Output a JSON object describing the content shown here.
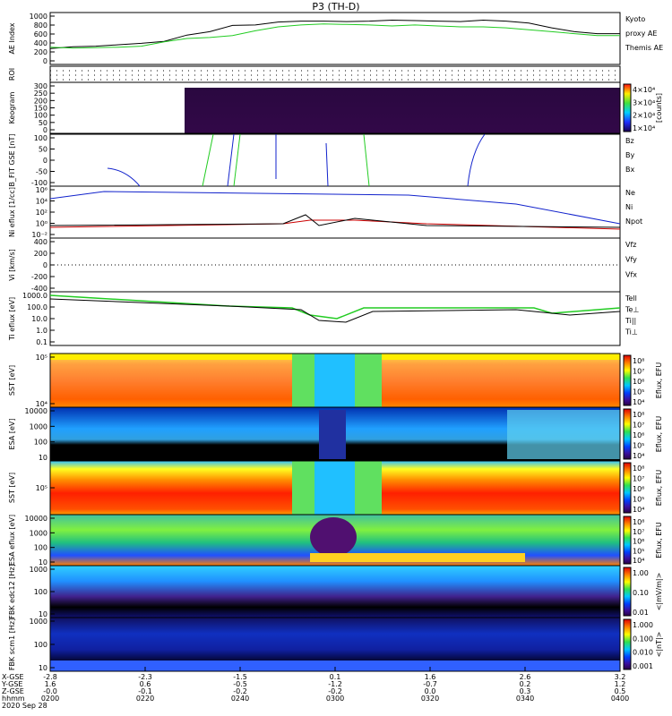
{
  "title": "P3 (TH-D)",
  "chart_data": [
    {
      "type": "line",
      "ylabel": "AE Index",
      "yticks": [
        "1000",
        "800",
        "600",
        "400",
        "200",
        "0"
      ],
      "legend": [
        {
          "text": "Kyoto",
          "color": "#22cc22"
        },
        {
          "text": "proxy AE",
          "color": "#22cc22"
        },
        {
          "text": "Themis AE",
          "color": "#000000"
        }
      ],
      "series": [
        {
          "name": "Themis AE",
          "color": "#000000",
          "x": [
            0,
            0.04,
            0.08,
            0.12,
            0.16,
            0.2,
            0.24,
            0.28,
            0.32,
            0.36,
            0.4,
            0.44,
            0.48,
            0.52,
            0.56,
            0.6,
            0.64,
            0.68,
            0.72,
            0.76,
            0.8,
            0.84,
            0.88,
            0.92,
            0.96,
            1
          ],
          "values": [
            290,
            330,
            340,
            370,
            400,
            440,
            570,
            640,
            770,
            780,
            840,
            860,
            860,
            850,
            860,
            880,
            870,
            860,
            850,
            880,
            860,
            820,
            720,
            640,
            600,
            600
          ]
        },
        {
          "name": "Kyoto proxy AE",
          "color": "#22cc22",
          "x": [
            0,
            0.04,
            0.08,
            0.12,
            0.16,
            0.2,
            0.24,
            0.28,
            0.32,
            0.36,
            0.4,
            0.44,
            0.48,
            0.52,
            0.56,
            0.6,
            0.64,
            0.68,
            0.72,
            0.76,
            0.8,
            0.84,
            0.88,
            0.92,
            0.96,
            1
          ],
          "values": [
            320,
            300,
            310,
            320,
            340,
            430,
            500,
            520,
            560,
            660,
            740,
            780,
            800,
            790,
            780,
            760,
            780,
            760,
            740,
            740,
            720,
            680,
            640,
            600,
            560,
            560
          ]
        }
      ]
    },
    {
      "type": "table",
      "ylabel": "ROI"
    },
    {
      "type": "heatmap",
      "ylabel": "Keogram",
      "yticks": [
        "300",
        "250",
        "200",
        "150",
        "100",
        "50",
        "0"
      ],
      "colorbar_ticks": [
        "4×10⁴",
        "3×10⁴",
        "2×10⁴",
        "1×10⁴"
      ],
      "colorbar_label": "[counts]"
    },
    {
      "type": "line",
      "ylabel": "B_FIT GSE [nT]",
      "yticks": [
        "100",
        "50",
        "0",
        "-50",
        "-100"
      ],
      "legend": [
        {
          "text": "Bz",
          "color": "#cc0000"
        },
        {
          "text": "By",
          "color": "#22cc22"
        },
        {
          "text": "Bx",
          "color": "#1122cc"
        }
      ]
    },
    {
      "type": "line",
      "ylabel": "Ni eflux [1/cc]",
      "yticks": [
        "10⁶",
        "10⁴",
        "10²",
        "10⁰",
        "10⁻²"
      ],
      "legend": [
        {
          "text": "Ne",
          "color": "#cc0000"
        },
        {
          "text": "Ni",
          "color": "#000000"
        },
        {
          "text": "Npot",
          "color": "#1122cc"
        }
      ]
    },
    {
      "type": "line",
      "ylabel": "Vi [km/s]",
      "yticks": [
        "400",
        "200",
        "0",
        "-200",
        "-400"
      ],
      "legend": [
        {
          "text": "Vfz",
          "color": "#cc0000"
        },
        {
          "text": "Vfy",
          "color": "#22cc22"
        },
        {
          "text": "Vfx",
          "color": "#1122cc"
        }
      ]
    },
    {
      "type": "line",
      "ylabel": "Ti eflux [eV]",
      "yticks": [
        "1000.0",
        "100.0",
        "10.0",
        "1.0",
        "0.1"
      ],
      "legend": [
        {
          "text": "Tell",
          "color": "#000000"
        },
        {
          "text": "Te⊥",
          "color": "#cc0000"
        },
        {
          "text": "Ti||",
          "color": "#22cc22"
        },
        {
          "text": "Ti⊥",
          "color": "#1122cc"
        }
      ]
    },
    {
      "type": "heatmap",
      "ylabel": "SST [eV]",
      "yticks": [
        "10⁵",
        "10⁴"
      ],
      "colorbar_ticks": [
        "10⁸",
        "10⁷",
        "10⁶",
        "10⁵",
        "10⁴"
      ],
      "colorbar_label": "Eflux, EFU"
    },
    {
      "type": "heatmap",
      "ylabel": "ESA [eV]",
      "yticks": [
        "10000",
        "1000",
        "100",
        "10"
      ],
      "colorbar_ticks": [
        "10⁸",
        "10⁷",
        "10⁶",
        "10⁵",
        "10⁴"
      ],
      "colorbar_label": "Eflux, EFU"
    },
    {
      "type": "heatmap",
      "ylabel": "SST [eV]",
      "yticks": [
        "10⁵"
      ],
      "colorbar_ticks": [
        "10⁸",
        "10⁷",
        "10⁶",
        "10⁵",
        "10⁴"
      ],
      "colorbar_label": "Eflux, EFU"
    },
    {
      "type": "heatmap",
      "ylabel": "ESA eflux [eV]",
      "yticks": [
        "10000",
        "1000",
        "100",
        "10"
      ],
      "colorbar_ticks": [
        "10⁸",
        "10⁷",
        "10⁶",
        "10⁵",
        "10⁴"
      ],
      "colorbar_label": "Eflux, EFU"
    },
    {
      "type": "heatmap",
      "ylabel": "FBK edc12 [Hz]",
      "yticks": [
        "1000",
        "100",
        "10"
      ],
      "colorbar_ticks": [
        "1.00",
        "0.10",
        "0.01"
      ],
      "colorbar_label": "<|mV/m|>"
    },
    {
      "type": "heatmap",
      "ylabel": "FBK scm1 [Hz]",
      "yticks": [
        "1000",
        "100",
        "10"
      ],
      "colorbar_ticks": [
        "1.000",
        "0.100",
        "0.010",
        "0.001"
      ],
      "colorbar_label": "<|nT|>"
    }
  ],
  "x_axis": {
    "row_labels": [
      "X-GSE",
      "Y-GSE",
      "Z-GSE",
      "hhmm",
      "2020 Sep 28"
    ],
    "ticks": [
      {
        "x": "-2.8",
        "y": "1.6",
        "z": "-0.0",
        "t": "0200"
      },
      {
        "x": "-2.3",
        "y": "0.6",
        "z": "-0.1",
        "t": "0220"
      },
      {
        "x": "-1.5",
        "y": "-0.5",
        "z": "-0.2",
        "t": "0240"
      },
      {
        "x": "0.1",
        "y": "-1.2",
        "z": "-0.2",
        "t": "0300"
      },
      {
        "x": "1.6",
        "y": "-0.7",
        "z": "0.0",
        "t": "0320"
      },
      {
        "x": "2.6",
        "y": "0.2",
        "z": "0.3",
        "t": "0340"
      },
      {
        "x": "3.2",
        "y": "1.2",
        "z": "0.5",
        "t": "0400"
      }
    ]
  }
}
